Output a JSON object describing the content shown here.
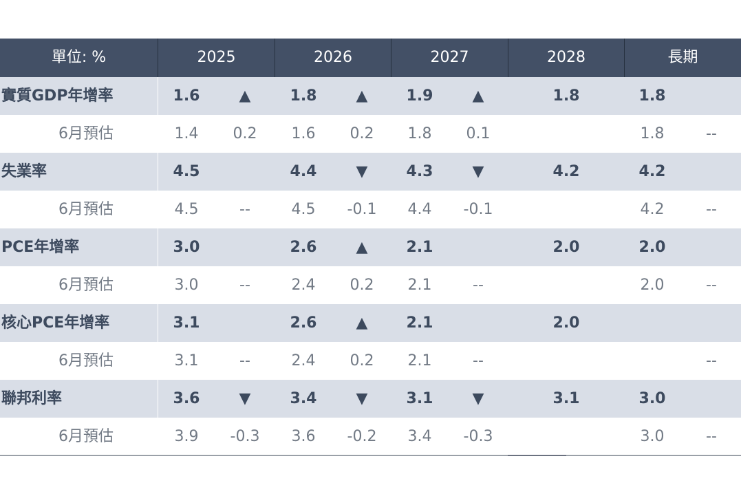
{
  "header": {
    "unit": "單位: %",
    "years": [
      "2025",
      "2026",
      "2027",
      "2028",
      "長期"
    ]
  },
  "rows": [
    {
      "type": "main",
      "label": "實質GDP年增率",
      "v2025": "1.6",
      "a2025": "▲",
      "v2026": "1.8",
      "a2026": "▲",
      "v2027": "1.9",
      "a2027": "▲",
      "v2028": "1.8",
      "vlong": "1.8",
      "along": ""
    },
    {
      "type": "sub",
      "label": "6月預估",
      "v2025": "1.4",
      "a2025": "0.2",
      "v2026": "1.6",
      "a2026": "0.2",
      "v2027": "1.8",
      "a2027": "0.1",
      "v2028": "",
      "vlong": "1.8",
      "along": "--"
    },
    {
      "type": "main",
      "label": "失業率",
      "v2025": "4.5",
      "a2025": "",
      "v2026": "4.4",
      "a2026": "▼",
      "v2027": "4.3",
      "a2027": "▼",
      "v2028": "4.2",
      "vlong": "4.2",
      "along": ""
    },
    {
      "type": "sub",
      "label": "6月預估",
      "v2025": "4.5",
      "a2025": "--",
      "v2026": "4.5",
      "a2026": "-0.1",
      "v2027": "4.4",
      "a2027": "-0.1",
      "v2028": "",
      "vlong": "4.2",
      "along": "--"
    },
    {
      "type": "main",
      "label": "PCE年增率",
      "v2025": "3.0",
      "a2025": "",
      "v2026": "2.6",
      "a2026": "▲",
      "v2027": "2.1",
      "a2027": "",
      "v2028": "2.0",
      "vlong": "2.0",
      "along": ""
    },
    {
      "type": "sub",
      "label": "6月預估",
      "v2025": "3.0",
      "a2025": "--",
      "v2026": "2.4",
      "a2026": "0.2",
      "v2027": "2.1",
      "a2027": "--",
      "v2028": "",
      "vlong": "2.0",
      "along": "--"
    },
    {
      "type": "main",
      "label": "核心PCE年增率",
      "v2025": "3.1",
      "a2025": "",
      "v2026": "2.6",
      "a2026": "▲",
      "v2027": "2.1",
      "a2027": "",
      "v2028": "2.0",
      "vlong": "",
      "along": ""
    },
    {
      "type": "sub",
      "label": "6月預估",
      "v2025": "3.1",
      "a2025": "--",
      "v2026": "2.4",
      "a2026": "0.2",
      "v2027": "2.1",
      "a2027": "--",
      "v2028": "",
      "vlong": "",
      "along": "--"
    },
    {
      "type": "main",
      "label": "聯邦利率",
      "v2025": "3.6",
      "a2025": "▼",
      "v2026": "3.4",
      "a2026": "▼",
      "v2027": "3.1",
      "a2027": "▼",
      "v2028": "3.1",
      "vlong": "3.0",
      "along": ""
    },
    {
      "type": "sub",
      "label": "6月預估",
      "v2025": "3.9",
      "a2025": "-0.3",
      "v2026": "3.6",
      "a2026": "-0.2",
      "v2027": "3.4",
      "a2027": "-0.3",
      "v2028": "",
      "vlong": "3.0",
      "along": "--"
    }
  ],
  "colors": {
    "header_bg": "#435066",
    "main_row_bg": "#d9dee7",
    "up_arrow": "#ee4a4a",
    "down_arrow": "#1a9a91"
  }
}
